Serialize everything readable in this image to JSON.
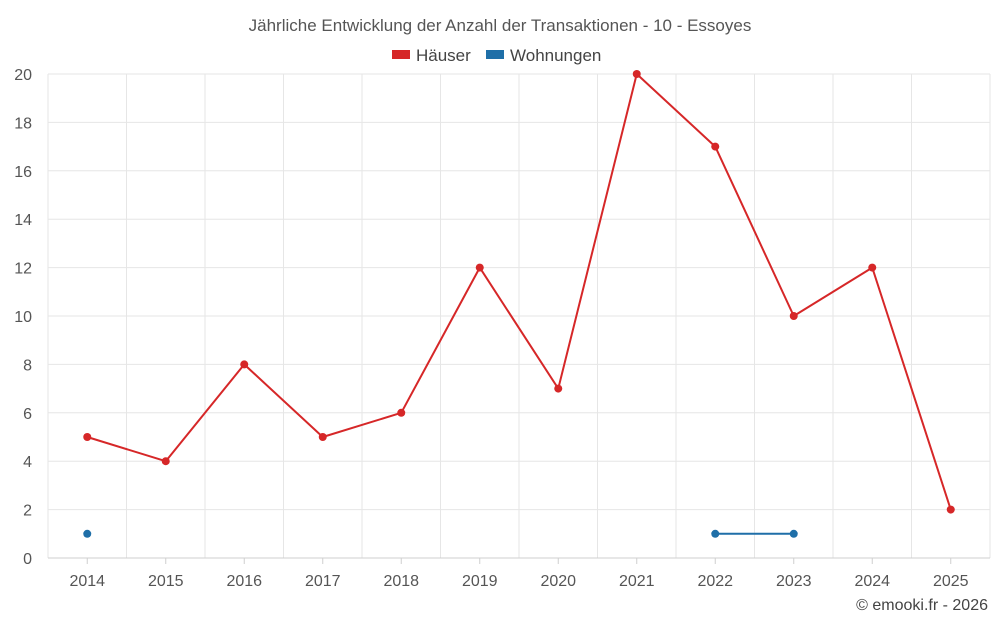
{
  "chart_data": {
    "type": "line",
    "title": "Jährliche Entwicklung der Anzahl der Transaktionen - 10 - Essoyes",
    "xlabel": "",
    "ylabel": "",
    "categories": [
      "2014",
      "2015",
      "2016",
      "2017",
      "2018",
      "2019",
      "2020",
      "2021",
      "2022",
      "2023",
      "2024",
      "2025"
    ],
    "ylim": [
      0,
      20
    ],
    "yticks": [
      "0",
      "2",
      "4",
      "6",
      "8",
      "10",
      "12",
      "14",
      "16",
      "18",
      "20"
    ],
    "grid": true,
    "legend_position": "top-center",
    "series": [
      {
        "name": "Häuser",
        "color": "#d62728",
        "values": [
          5,
          4,
          8,
          5,
          6,
          12,
          7,
          20,
          17,
          10,
          12,
          2
        ]
      },
      {
        "name": "Wohnungen",
        "color": "#1f6fa8",
        "values": [
          1,
          null,
          null,
          null,
          null,
          null,
          null,
          null,
          1,
          1,
          null,
          null
        ]
      }
    ]
  },
  "credit": "© emooki.fr - 2026"
}
